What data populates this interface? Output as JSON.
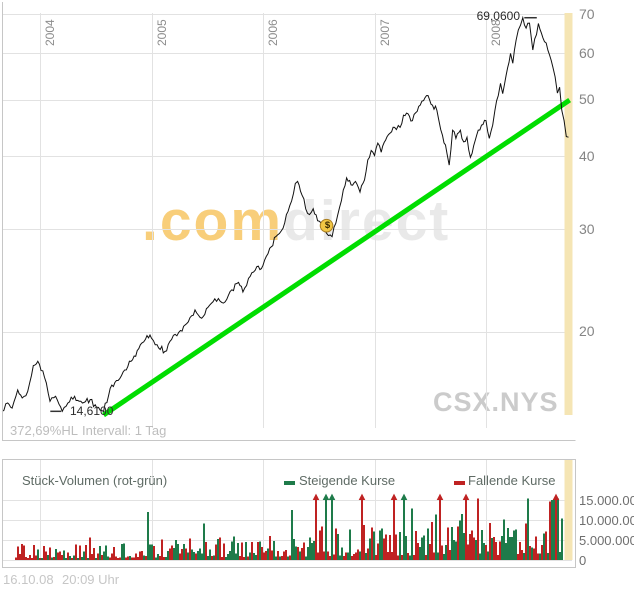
{
  "main_chart": {
    "y_axis": {
      "ticks": [
        70,
        60,
        50,
        40,
        30,
        20
      ]
    },
    "x_axis": {
      "ticks": [
        2004,
        2005,
        2006,
        2007,
        2008
      ]
    },
    "annotations": {
      "high": {
        "label": "69,0600",
        "t": 2008.33,
        "value": 69.06
      },
      "low": {
        "label": "14,6100",
        "t": 2004.2,
        "value": 14.61
      },
      "event": {
        "symbol": "$",
        "t": 2006.57,
        "value": 30.4
      }
    },
    "footer": {
      "performance": "372,69%HL",
      "interval": "Intervall: 1 Tag"
    },
    "watermark_brand": {
      "prefix": ".com",
      "suffix": "direct"
    },
    "watermark_symbol": "CSX.NYS"
  },
  "volume_chart": {
    "title": "Stück-Volumen (rot-grün)",
    "legend": [
      {
        "label": "Steigende Kurse",
        "color": "#1e7b4a"
      },
      {
        "label": "Fallende Kurse",
        "color": "#bf2222"
      }
    ],
    "y_axis": {
      "tick_labels": [
        "15.000.000",
        "10.000.000",
        "5.000.000",
        "0"
      ],
      "tick_values": [
        15000000,
        10000000,
        5000000,
        0
      ]
    }
  },
  "status_bar": {
    "date": "16.10.08",
    "time": "20:09 Uhr"
  },
  "colors": {
    "price": "#111111",
    "trend": "#00dd00",
    "band": "#f5e5b4",
    "up": "#1e7b4a",
    "down": "#bf2222",
    "grid": "#e2e2e2",
    "border": "#c6c6c6",
    "dash": "#333333",
    "event_fill": "#f2c744",
    "event_stroke": "#aa7d1e"
  },
  "chart_data": [
    {
      "type": "line",
      "name": "CSX.NYS Kurs",
      "x_unit": "year",
      "scale_y": "log",
      "x_range": [
        2003.66,
        2008.79
      ],
      "y_range": [
        13.7,
        71
      ],
      "high": {
        "t": 2008.33,
        "value": 69.06
      },
      "low": {
        "t": 2004.2,
        "value": 14.61
      },
      "trendline": {
        "from": [
          2004.57,
          14.4
        ],
        "to": [
          2008.75,
          49.9
        ]
      },
      "points": [
        [
          2003.66,
          14.6
        ],
        [
          2003.71,
          15.1
        ],
        [
          2003.75,
          14.8
        ],
        [
          2003.8,
          15.9
        ],
        [
          2003.84,
          15.4
        ],
        [
          2003.89,
          15.8
        ],
        [
          2003.94,
          17.5
        ],
        [
          2003.98,
          17.8
        ],
        [
          2004.04,
          16.7
        ],
        [
          2004.09,
          15.2
        ],
        [
          2004.14,
          15.5
        ],
        [
          2004.2,
          14.61
        ],
        [
          2004.25,
          15.1
        ],
        [
          2004.31,
          15.5
        ],
        [
          2004.38,
          15.1
        ],
        [
          2004.45,
          15.3
        ],
        [
          2004.51,
          14.8
        ],
        [
          2004.57,
          14.6
        ],
        [
          2004.63,
          16.0
        ],
        [
          2004.7,
          16.5
        ],
        [
          2004.76,
          17.2
        ],
        [
          2004.83,
          17.9
        ],
        [
          2004.9,
          19.0
        ],
        [
          2004.96,
          19.7
        ],
        [
          2005.0,
          19.5
        ],
        [
          2005.05,
          19.0
        ],
        [
          2005.12,
          18.5
        ],
        [
          2005.18,
          19.4
        ],
        [
          2005.26,
          20.1
        ],
        [
          2005.33,
          20.8
        ],
        [
          2005.39,
          21.8
        ],
        [
          2005.45,
          21.1
        ],
        [
          2005.52,
          22.2
        ],
        [
          2005.6,
          22.8
        ],
        [
          2005.66,
          22.5
        ],
        [
          2005.72,
          23.6
        ],
        [
          2005.78,
          24.3
        ],
        [
          2005.82,
          23.4
        ],
        [
          2005.87,
          24.7
        ],
        [
          2005.93,
          25.5
        ],
        [
          2006.0,
          26.0
        ],
        [
          2006.06,
          27.8
        ],
        [
          2006.13,
          29.3
        ],
        [
          2006.18,
          30.1
        ],
        [
          2006.24,
          32.9
        ],
        [
          2006.29,
          35.9
        ],
        [
          2006.31,
          36.2
        ],
        [
          2006.35,
          34.3
        ],
        [
          2006.4,
          31.9
        ],
        [
          2006.45,
          32.5
        ],
        [
          2006.49,
          31.0
        ],
        [
          2006.54,
          30.6
        ],
        [
          2006.57,
          29.5
        ],
        [
          2006.62,
          29.1
        ],
        [
          2006.67,
          31.7
        ],
        [
          2006.72,
          35.0
        ],
        [
          2006.75,
          36.7
        ],
        [
          2006.79,
          35.7
        ],
        [
          2006.83,
          36.2
        ],
        [
          2006.87,
          34.7
        ],
        [
          2006.91,
          36.4
        ],
        [
          2006.94,
          39.4
        ],
        [
          2006.97,
          40.9
        ],
        [
          2007.0,
          40.1
        ],
        [
          2007.03,
          42.1
        ],
        [
          2007.06,
          40.6
        ],
        [
          2007.1,
          42.6
        ],
        [
          2007.14,
          43.8
        ],
        [
          2007.18,
          44.8
        ],
        [
          2007.23,
          44.8
        ],
        [
          2007.26,
          47.0
        ],
        [
          2007.3,
          47.3
        ],
        [
          2007.34,
          46.0
        ],
        [
          2007.37,
          47.5
        ],
        [
          2007.41,
          48.9
        ],
        [
          2007.44,
          49.8
        ],
        [
          2007.48,
          50.8
        ],
        [
          2007.52,
          48.9
        ],
        [
          2007.56,
          47.9
        ],
        [
          2007.61,
          43.4
        ],
        [
          2007.65,
          40.4
        ],
        [
          2007.67,
          38.6
        ],
        [
          2007.7,
          44.3
        ],
        [
          2007.73,
          42.9
        ],
        [
          2007.77,
          44.3
        ],
        [
          2007.8,
          42.3
        ],
        [
          2007.83,
          43.1
        ],
        [
          2007.86,
          39.8
        ],
        [
          2007.89,
          41.7
        ],
        [
          2007.93,
          44.3
        ],
        [
          2007.96,
          45.2
        ],
        [
          2008.0,
          46.0
        ],
        [
          2008.03,
          42.9
        ],
        [
          2008.06,
          45.2
        ],
        [
          2008.08,
          47.9
        ],
        [
          2008.11,
          50.8
        ],
        [
          2008.13,
          53.3
        ],
        [
          2008.15,
          51.2
        ],
        [
          2008.18,
          55.0
        ],
        [
          2008.22,
          60.0
        ],
        [
          2008.24,
          57.7
        ],
        [
          2008.27,
          63.2
        ],
        [
          2008.29,
          65.8
        ],
        [
          2008.31,
          67.1
        ],
        [
          2008.33,
          69.06
        ],
        [
          2008.36,
          66.3
        ],
        [
          2008.39,
          67.6
        ],
        [
          2008.42,
          60.8
        ],
        [
          2008.47,
          67.5
        ],
        [
          2008.51,
          63.8
        ],
        [
          2008.54,
          62.5
        ],
        [
          2008.57,
          59.6
        ],
        [
          2008.6,
          56.8
        ],
        [
          2008.62,
          54.7
        ],
        [
          2008.64,
          51.3
        ],
        [
          2008.66,
          52.5
        ],
        [
          2008.68,
          47.9
        ],
        [
          2008.7,
          46.0
        ],
        [
          2008.72,
          43.2
        ],
        [
          2008.74,
          43.1
        ]
      ]
    },
    {
      "type": "bar",
      "name": "Stück-Volumen",
      "x_unit": "year",
      "y_max": 16000000,
      "envelope_unit": "millions",
      "envelope": [
        [
          2003.7,
          2.0
        ],
        [
          2004.5,
          2.3
        ],
        [
          2005.0,
          2.6
        ],
        [
          2005.8,
          3.0
        ],
        [
          2006.3,
          3.8
        ],
        [
          2006.8,
          4.4
        ],
        [
          2007.2,
          5.2
        ],
        [
          2007.7,
          5.8
        ],
        [
          2008.0,
          5.6
        ],
        [
          2008.4,
          6.5
        ],
        [
          2008.65,
          8.5
        ],
        [
          2008.79,
          11.0
        ]
      ],
      "overflow_arrows": [
        [
          2006.48,
          "down"
        ],
        [
          2006.56,
          "up"
        ],
        [
          2006.61,
          "up"
        ],
        [
          2006.89,
          "down"
        ],
        [
          2007.18,
          "down"
        ],
        [
          2007.26,
          "up"
        ],
        [
          2007.58,
          "down"
        ],
        [
          2007.82,
          "down"
        ],
        [
          2008.63,
          "down"
        ]
      ],
      "tall_bars": [
        [
          2006.26,
          "up",
          12.5
        ]
      ]
    }
  ]
}
